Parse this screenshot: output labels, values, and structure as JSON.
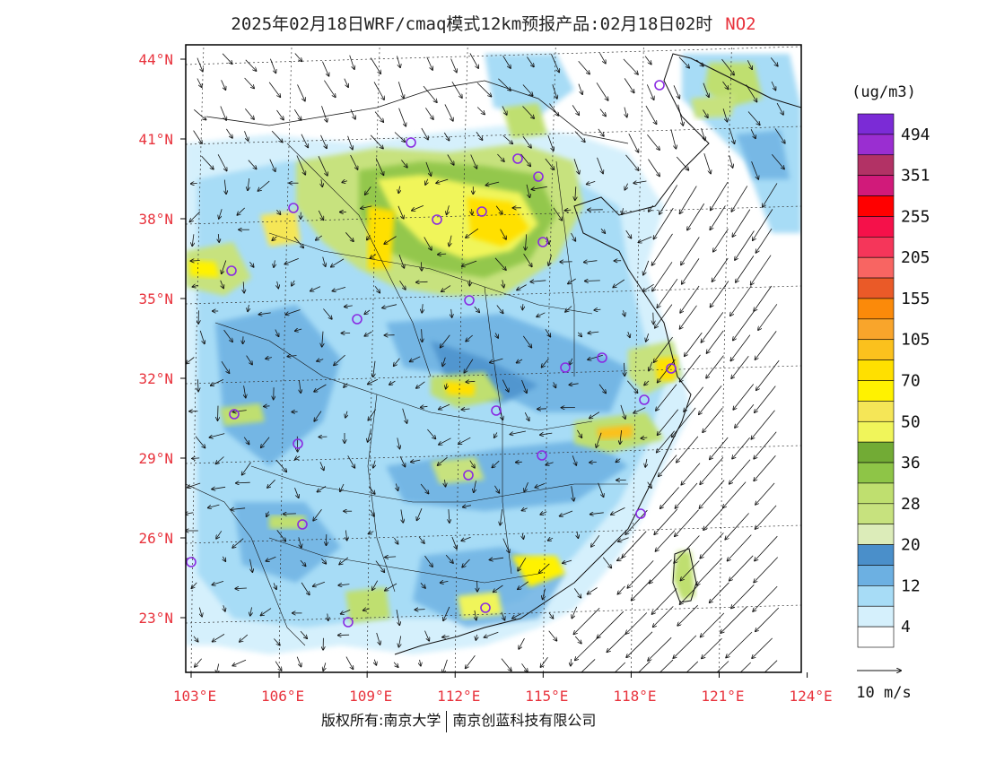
{
  "title": {
    "main": "2025年02月18日WRF/cmaq模式12km预报产品:02月18日02时",
    "pollutant": "NO2"
  },
  "axes": {
    "lat_labels": [
      "44°N",
      "41°N",
      "38°N",
      "35°N",
      "32°N",
      "29°N",
      "26°N",
      "23°N"
    ],
    "lon_labels": [
      "103°E",
      "106°E",
      "109°E",
      "112°E",
      "115°E",
      "118°E",
      "121°E",
      "124°E"
    ],
    "lat_values": [
      44,
      41,
      38,
      35,
      32,
      29,
      26,
      23
    ],
    "lon_values": [
      103,
      106,
      109,
      112,
      115,
      118,
      121,
      124
    ],
    "label_color": "#e8323c",
    "extent": {
      "lon": [
        103,
        124
      ],
      "lat": [
        21,
        44.5
      ]
    }
  },
  "legend": {
    "unit": "(ug/m3)",
    "levels": [
      {
        "label": "494",
        "color": "#7b2bd6"
      },
      {
        "label": "",
        "color": "#9a2ed1"
      },
      {
        "label": "351",
        "color": "#b23265"
      },
      {
        "label": "",
        "color": "#d11a7a"
      },
      {
        "label": "255",
        "color": "#ff0000"
      },
      {
        "label": "",
        "color": "#f5114a"
      },
      {
        "label": "205",
        "color": "#f5365a"
      },
      {
        "label": "",
        "color": "#f86562"
      },
      {
        "label": "155",
        "color": "#ea5a28"
      },
      {
        "label": "",
        "color": "#fb8a0a"
      },
      {
        "label": "105",
        "color": "#f9a52b"
      },
      {
        "label": "",
        "color": "#fbc11d"
      },
      {
        "label": "70",
        "color": "#ffe000"
      },
      {
        "label": "",
        "color": "#fff200"
      },
      {
        "label": "50",
        "color": "#f5e657"
      },
      {
        "label": "",
        "color": "#f0f55a"
      },
      {
        "label": "36",
        "color": "#72ab35"
      },
      {
        "label": "",
        "color": "#8ec547"
      },
      {
        "label": "28",
        "color": "#bfdf6f"
      },
      {
        "label": "",
        "color": "#c7e27e"
      },
      {
        "label": "20",
        "color": "#dcecb9"
      },
      {
        "label": "",
        "color": "#4a8fca"
      },
      {
        "label": "12",
        "color": "#6cb0e2"
      },
      {
        "label": "",
        "color": "#a7dcf6"
      },
      {
        "label": "4",
        "color": "#d5f0fc"
      },
      {
        "label": "",
        "color": "#ffffff"
      }
    ]
  },
  "wind_scale": {
    "label": "10 m/s"
  },
  "copyright": {
    "left": "版权所有:南京大学",
    "right": "南京创蓝科技有限公司"
  }
}
